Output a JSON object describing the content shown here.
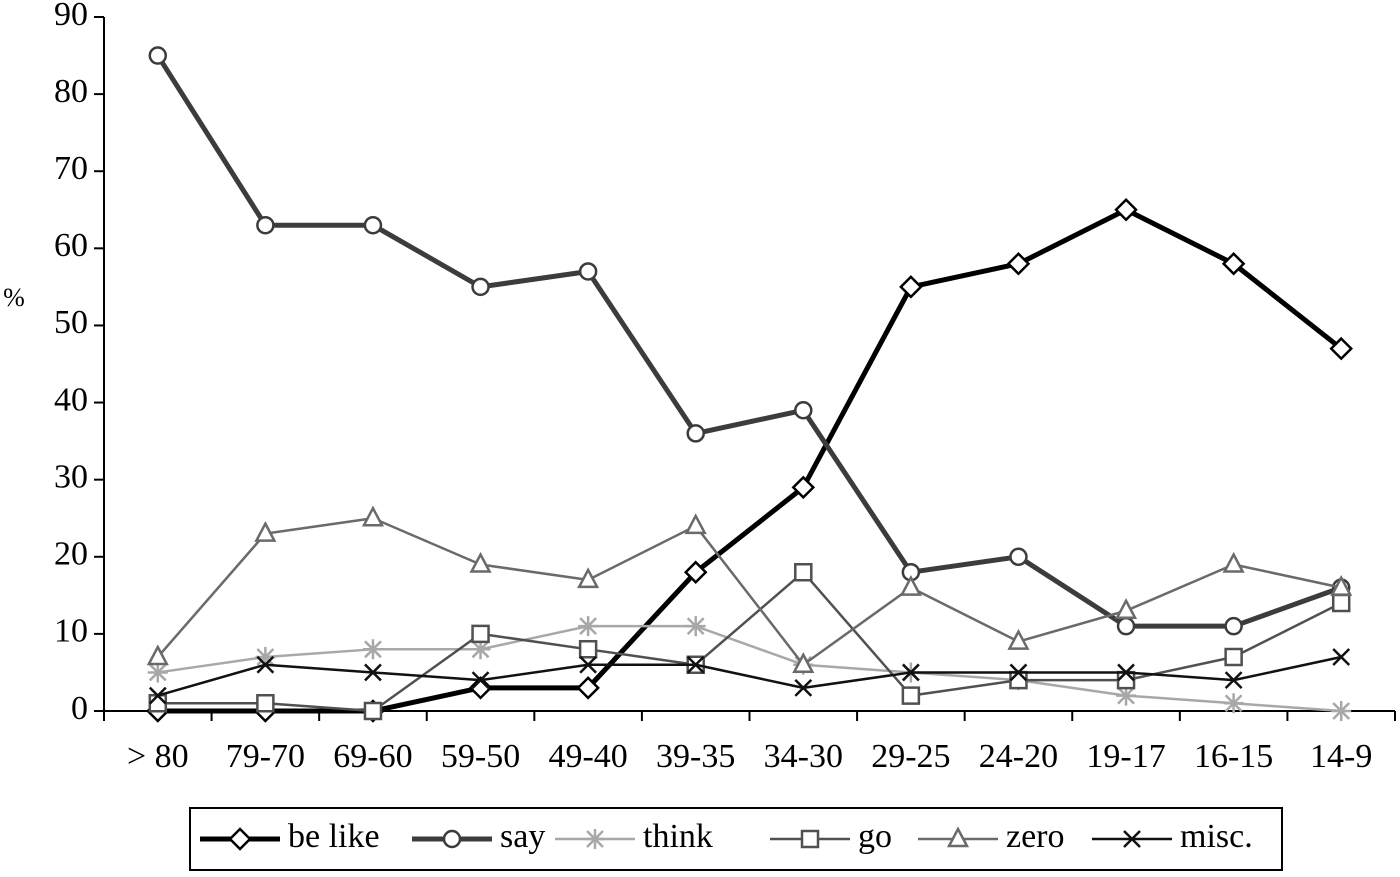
{
  "chart_data": {
    "type": "line",
    "y_label": "%",
    "categories": [
      "> 80",
      "79-70",
      "69-60",
      "59-50",
      "49-40",
      "39-35",
      "34-30",
      "29-25",
      "24-20",
      "19-17",
      "16-15",
      "14-9"
    ],
    "ylim": [
      0,
      90
    ],
    "yticks": [
      0,
      10,
      20,
      30,
      40,
      50,
      60,
      70,
      80,
      90
    ],
    "grid": false,
    "legend": "bottom",
    "series": [
      {
        "name": "be like",
        "color": "#000000",
        "marker": "diamond",
        "line_width": 5,
        "values": [
          0,
          0,
          0,
          3,
          3,
          18,
          29,
          55,
          58,
          65,
          58,
          47
        ]
      },
      {
        "name": "say",
        "color": "#3c3c3c",
        "marker": "circle",
        "line_width": 5,
        "values": [
          85,
          63,
          63,
          55,
          57,
          36,
          39,
          18,
          20,
          11,
          11,
          16
        ]
      },
      {
        "name": "think",
        "color": "#a8a8a8",
        "marker": "asterisk",
        "line_width": 2.5,
        "values": [
          5,
          7,
          8,
          8,
          11,
          11,
          6,
          5,
          4,
          2,
          1,
          0
        ]
      },
      {
        "name": "go",
        "color": "#505050",
        "marker": "square",
        "line_width": 2.5,
        "values": [
          1,
          1,
          0,
          10,
          8,
          6,
          18,
          2,
          4,
          4,
          7,
          14
        ]
      },
      {
        "name": "zero",
        "color": "#6a6a6a",
        "marker": "triangle",
        "line_width": 2.5,
        "values": [
          7,
          23,
          25,
          19,
          17,
          24,
          6,
          16,
          9,
          13,
          19,
          16
        ]
      },
      {
        "name": "misc.",
        "color": "#111111",
        "marker": "cross",
        "line_width": 2.5,
        "values": [
          2,
          6,
          5,
          4,
          6,
          6,
          3,
          5,
          5,
          5,
          4,
          7
        ]
      }
    ]
  }
}
